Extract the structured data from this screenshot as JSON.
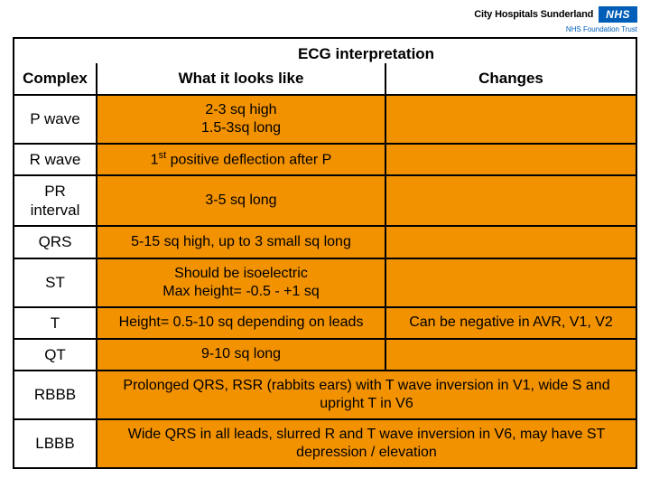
{
  "logo": {
    "org": "City Hospitals Sunderland",
    "badge": "NHS",
    "sub": "NHS Foundation Trust"
  },
  "table": {
    "title": "ECG interpretation",
    "columns": [
      "Complex",
      "What it looks like",
      "Changes"
    ],
    "background_color": "#f29200",
    "border_color": "#000000",
    "rows": [
      {
        "label": "P wave",
        "looks": "2-3 sq high\n1.5-3sq long",
        "changes": "",
        "span": false
      },
      {
        "label": "R wave",
        "looks_html": "1<span class='sup'>st</span> positive deflection after P",
        "changes": "",
        "span": false
      },
      {
        "label": "PR interval",
        "looks": "3-5 sq long",
        "changes": "",
        "span": false
      },
      {
        "label": "QRS",
        "looks": "5-15 sq high,   up to 3 small sq long",
        "changes": "",
        "span": false
      },
      {
        "label": "ST",
        "looks": "Should be isoelectric\nMax height= -0.5 - +1 sq",
        "changes": "",
        "span": false
      },
      {
        "label": "T",
        "looks": "Height= 0.5-10 sq depending on leads",
        "changes": "Can be negative in AVR, V1, V2",
        "span": false
      },
      {
        "label": "QT",
        "looks": "9-10 sq long",
        "changes": "",
        "span": false
      },
      {
        "label": "RBBB",
        "looks": "Prolonged QRS, RSR (rabbits ears) with T wave inversion in V1, wide S and upright T in V6",
        "span": true
      },
      {
        "label": "LBBB",
        "looks": "Wide QRS in all leads, slurred R and T wave inversion in V6, may have ST depression / elevation",
        "span": true
      }
    ]
  }
}
